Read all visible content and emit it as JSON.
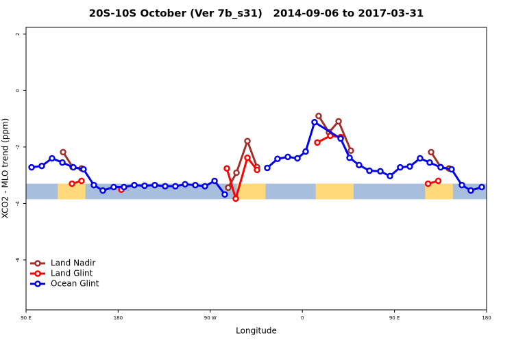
{
  "chart_data": {
    "type": "line",
    "title": "20S-10S October (Ver 7b_s31)   2014-09-06 to 2017-03-31",
    "xlabel": "Longitude",
    "ylabel": "XCO2 - MLO trend (ppm)",
    "xlim": [
      90,
      540
    ],
    "xticks": [
      {
        "value": 90,
        "label": "90 E"
      },
      180,
      {
        "value": 270,
        "label": "90 W"
      },
      {
        "value": 360,
        "label": "0"
      },
      {
        "value": 450,
        "label": "90 E"
      },
      {
        "value": 540,
        "label": "180"
      }
    ],
    "ylim": [
      -7.77,
      2.24
    ],
    "yticks": [
      2,
      0,
      -2,
      -4,
      -6
    ],
    "legend": "bottom-left",
    "band": {
      "ylim": [
        -3.85,
        -3.3
      ],
      "color": "#a7bedd",
      "land_color": "#ffd97a",
      "land": [
        [
          121,
          148
        ],
        [
          296,
          324
        ],
        [
          373,
          410
        ],
        [
          480,
          507
        ]
      ]
    },
    "series": [
      {
        "name": "Land Nadir",
        "color": "#a0302c",
        "x": [
          126.2,
          135.5,
          144.2,
          200,
          287.5,
          295.6,
          306.3,
          315.7,
          345,
          375.9,
          386,
          395.4,
          407.4,
          450,
          485.8,
          495.1,
          503.2
        ],
        "values": [
          -2.18,
          -2.71,
          -2.76,
          null,
          -3.44,
          -2.91,
          -1.79,
          -2.71,
          null,
          -0.9,
          -1.48,
          -1.09,
          -2.13,
          null,
          -2.18,
          -2.71,
          -2.76
        ]
      },
      {
        "name": "Land Glint",
        "color": "#ff0000",
        "x": [
          134.9,
          144.2,
          160,
          183.1,
          230,
          286.2,
          294.9,
          306.3,
          315.7,
          345,
          374.6,
          387.3,
          397.4,
          450,
          482.8,
          492.8
        ],
        "values": [
          -3.3,
          -3.2,
          null,
          -3.51,
          null,
          -2.76,
          -3.83,
          -2.38,
          -2.81,
          null,
          -1.84,
          -1.6,
          -1.65,
          null,
          -3.3,
          -3.2
        ]
      },
      {
        "name": "Ocean Glint",
        "color": "#0000ee",
        "x": [
          95.4,
          105.4,
          115.4,
          125.5,
          136.2,
          146.2,
          156.3,
          165,
          175.7,
          185.7,
          195.8,
          205.8,
          215.8,
          225.9,
          235.9,
          245.4,
          255.4,
          264.8,
          274.2,
          284.2,
          305,
          325.7,
          335.7,
          345.8,
          355.2,
          363.2,
          371.9,
          397.4,
          406.1,
          415.4,
          425.5,
          436.2,
          445.6,
          455.6,
          465,
          475,
          484.4,
          495.1,
          505.8,
          515.9,
          524.6,
          535.3
        ],
        "values": [
          -2.72,
          -2.67,
          -2.4,
          -2.55,
          -2.72,
          -2.79,
          -3.35,
          -3.54,
          -3.42,
          -3.42,
          -3.35,
          -3.37,
          -3.35,
          -3.39,
          -3.39,
          -3.32,
          -3.35,
          -3.39,
          -3.2,
          -3.68,
          null,
          -2.74,
          -2.42,
          -2.35,
          -2.4,
          -2.16,
          -1.12,
          -1.7,
          -2.38,
          -2.64,
          -2.84,
          -2.86,
          -3.03,
          -2.72,
          -2.69,
          -2.4,
          -2.55,
          -2.72,
          -2.79,
          -3.35,
          -3.54,
          -3.42
        ]
      }
    ]
  }
}
